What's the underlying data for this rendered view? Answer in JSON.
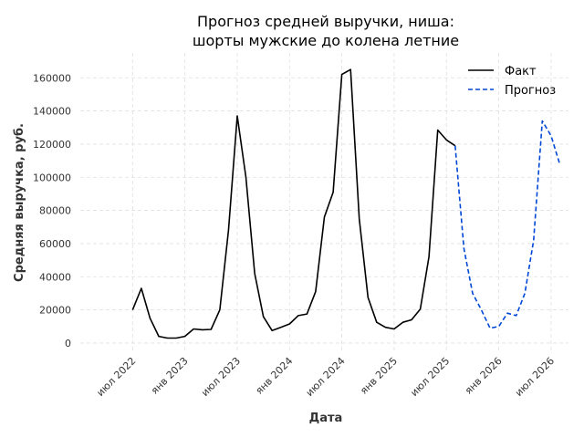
{
  "chart_data": {
    "type": "line",
    "title_line1": "Прогноз средней выручки, ниша:",
    "title_line2": "шорты мужские до колена летние",
    "xlabel": "Дата",
    "ylabel": "Средняя выручка, руб.",
    "ylim": [
      -5000,
      175000
    ],
    "yticks": [
      0,
      20000,
      40000,
      60000,
      80000,
      100000,
      120000,
      140000,
      160000
    ],
    "ytick_labels": [
      "0",
      "20000",
      "40000",
      "60000",
      "80000",
      "100000",
      "120000",
      "140000",
      "160000"
    ],
    "x_range": [
      "2022-01",
      "2026-09"
    ],
    "xticks": [
      "2022-07",
      "2023-01",
      "2023-07",
      "2024-01",
      "2024-07",
      "2025-01",
      "2025-07",
      "2026-01",
      "2026-07"
    ],
    "xtick_labels": [
      "июл 2022",
      "янв 2023",
      "июл 2023",
      "янв 2024",
      "июл 2024",
      "янв 2025",
      "июл 2025",
      "янв 2026",
      "июл 2026"
    ],
    "grid": true,
    "legend_position": "top-right",
    "series": [
      {
        "name": "Факт",
        "style": "solid",
        "color": "#000000",
        "points": [
          [
            "2022-07",
            20000
          ],
          [
            "2022-08",
            33000
          ],
          [
            "2022-09",
            15000
          ],
          [
            "2022-10",
            4000
          ],
          [
            "2022-11",
            3000
          ],
          [
            "2022-12",
            3000
          ],
          [
            "2023-01",
            4000
          ],
          [
            "2023-02",
            8500
          ],
          [
            "2023-03",
            8000
          ],
          [
            "2023-04",
            8200
          ],
          [
            "2023-05",
            20000
          ],
          [
            "2023-06",
            68000
          ],
          [
            "2023-07",
            137000
          ],
          [
            "2023-08",
            100000
          ],
          [
            "2023-09",
            42000
          ],
          [
            "2023-10",
            16000
          ],
          [
            "2023-11",
            7500
          ],
          [
            "2023-12",
            9500
          ],
          [
            "2024-01",
            11500
          ],
          [
            "2024-02",
            16500
          ],
          [
            "2024-03",
            17500
          ],
          [
            "2024-04",
            31000
          ],
          [
            "2024-05",
            76000
          ],
          [
            "2024-06",
            91000
          ],
          [
            "2024-07",
            162000
          ],
          [
            "2024-08",
            165000
          ],
          [
            "2024-09",
            75000
          ],
          [
            "2024-10",
            27500
          ],
          [
            "2024-11",
            12500
          ],
          [
            "2024-12",
            9500
          ],
          [
            "2025-01",
            8500
          ],
          [
            "2025-02",
            12500
          ],
          [
            "2025-03",
            14000
          ],
          [
            "2025-04",
            20500
          ],
          [
            "2025-05",
            52000
          ],
          [
            "2025-06",
            128500
          ],
          [
            "2025-07",
            122500
          ],
          [
            "2025-08",
            119000
          ]
        ]
      },
      {
        "name": "Прогноз",
        "style": "dashed",
        "color": "#0047d6",
        "points": [
          [
            "2025-08",
            119000
          ],
          [
            "2025-09",
            57000
          ],
          [
            "2025-10",
            30000
          ],
          [
            "2025-11",
            20000
          ],
          [
            "2025-12",
            9000
          ],
          [
            "2026-01",
            10000
          ],
          [
            "2026-02",
            18000
          ],
          [
            "2026-03",
            16500
          ],
          [
            "2026-04",
            30000
          ],
          [
            "2026-05",
            62000
          ],
          [
            "2026-06",
            134000
          ],
          [
            "2026-07",
            125000
          ],
          [
            "2026-08",
            108000
          ]
        ]
      }
    ]
  }
}
